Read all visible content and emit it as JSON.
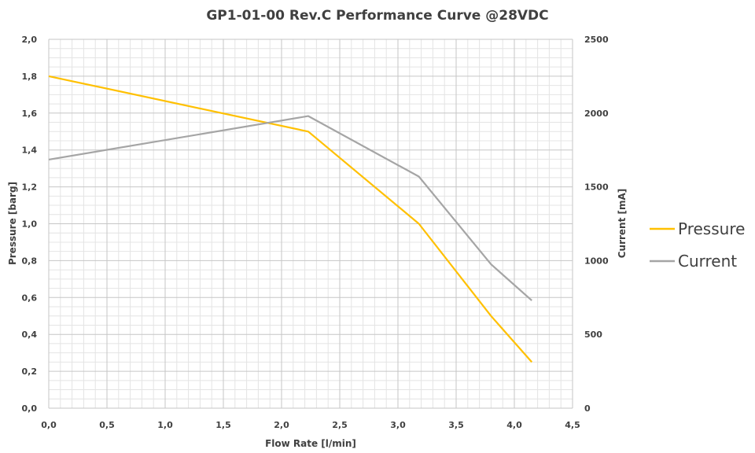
{
  "chart_data": {
    "type": "line",
    "title": "GP1-01-00 Rev.C Performance Curve @28VDC",
    "xlabel": "Flow Rate [l/min]",
    "ylabel": "Pressure [barg]",
    "y2label": "Current [mA]",
    "xlim": [
      0,
      4.5
    ],
    "ylim": [
      0,
      2.0
    ],
    "y2lim": [
      0,
      2500
    ],
    "x_ticks": [
      "0,0",
      "0,5",
      "1,0",
      "1,5",
      "2,0",
      "2,5",
      "3,0",
      "3,5",
      "4,0",
      "4,5"
    ],
    "y_ticks": [
      "0,0",
      "0,2",
      "0,4",
      "0,6",
      "0,8",
      "1,0",
      "1,2",
      "1,4",
      "1,6",
      "1,8",
      "2,0"
    ],
    "y2_ticks": [
      "0",
      "500",
      "1000",
      "1500",
      "2000",
      "2500"
    ],
    "grid": true,
    "legend_position": "right",
    "series": [
      {
        "name": "Pressure",
        "axis": "left",
        "color": "#FFC000",
        "points": [
          [
            0.0,
            1.8
          ],
          [
            2.23,
            1.5
          ],
          [
            3.18,
            1.0
          ],
          [
            3.8,
            0.5
          ],
          [
            4.15,
            0.25
          ]
        ]
      },
      {
        "name": "Current",
        "axis": "right",
        "color": "#A5A5A5",
        "points": [
          [
            0.0,
            1685
          ],
          [
            2.23,
            1980
          ],
          [
            3.18,
            1570
          ],
          [
            3.8,
            975
          ],
          [
            4.15,
            730
          ]
        ]
      }
    ]
  }
}
